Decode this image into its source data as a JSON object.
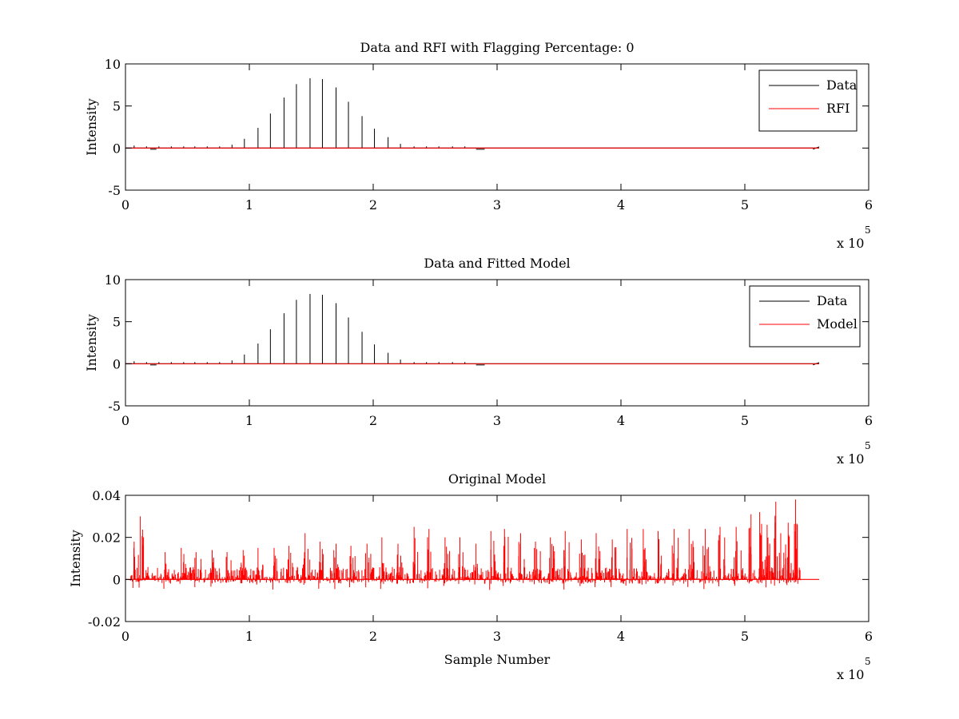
{
  "chart_data": [
    {
      "type": "line",
      "title": "Data and RFI with Flagging Percentage: 0",
      "xlabel": "",
      "ylabel": "Intensity",
      "xlim": [
        0,
        6
      ],
      "ylim": [
        -5,
        10
      ],
      "x_ticks": [
        "0",
        "1",
        "2",
        "3",
        "4",
        "5",
        "6"
      ],
      "y_ticks": [
        "-5",
        "0",
        "5",
        "10"
      ],
      "x_multiplier": [
        "x 10",
        "5"
      ],
      "legend": {
        "position": "top-right",
        "entries": [
          "Data",
          "RFI"
        ]
      },
      "grid": false,
      "series": [
        {
          "name": "Data",
          "color": "#000000",
          "style": "spikes",
          "baseline": 0,
          "x": [
            0.07,
            0.17,
            0.27,
            0.37,
            0.47,
            0.56,
            0.66,
            0.76,
            0.86,
            0.96,
            1.07,
            1.17,
            1.28,
            1.38,
            1.49,
            1.59,
            1.7,
            1.8,
            1.91,
            2.01,
            2.12,
            2.22,
            2.33,
            2.43,
            2.53,
            2.64,
            2.74
          ],
          "values": [
            0.3,
            0.2,
            0.2,
            0.2,
            0.2,
            0.2,
            0.2,
            0.2,
            0.4,
            1.1,
            2.4,
            4.1,
            6.0,
            7.6,
            8.3,
            8.2,
            7.2,
            5.5,
            3.8,
            2.3,
            1.3,
            0.5,
            0.2,
            0.2,
            0.2,
            0.2,
            0.2
          ]
        },
        {
          "name": "RFI",
          "color": "#ff0000",
          "style": "spikes",
          "baseline": 0,
          "x": [],
          "values": []
        }
      ]
    },
    {
      "type": "line",
      "title": "Data and Fitted Model",
      "xlabel": "",
      "ylabel": "Intensity",
      "xlim": [
        0,
        6
      ],
      "ylim": [
        -5,
        10
      ],
      "x_ticks": [
        "0",
        "1",
        "2",
        "3",
        "4",
        "5",
        "6"
      ],
      "y_ticks": [
        "-5",
        "0",
        "5",
        "10"
      ],
      "x_multiplier": [
        "x 10",
        "5"
      ],
      "legend": {
        "position": "top-right",
        "entries": [
          "Data",
          "Model"
        ]
      },
      "grid": false,
      "series": [
        {
          "name": "Data",
          "color": "#000000",
          "style": "spikes",
          "baseline": 0,
          "x": [
            0.07,
            0.17,
            0.27,
            0.37,
            0.47,
            0.56,
            0.66,
            0.76,
            0.86,
            0.96,
            1.07,
            1.17,
            1.28,
            1.38,
            1.49,
            1.59,
            1.7,
            1.8,
            1.91,
            2.01,
            2.12,
            2.22,
            2.33,
            2.43,
            2.53,
            2.64,
            2.74
          ],
          "values": [
            0.3,
            0.2,
            0.2,
            0.2,
            0.2,
            0.2,
            0.2,
            0.2,
            0.4,
            1.1,
            2.4,
            4.1,
            6.0,
            7.6,
            8.3,
            8.2,
            7.2,
            5.5,
            3.8,
            2.3,
            1.3,
            0.5,
            0.2,
            0.2,
            0.2,
            0.2,
            0.2
          ]
        },
        {
          "name": "Model",
          "color": "#ff0000",
          "style": "line",
          "x": [
            0,
            5.6
          ],
          "values": [
            0,
            0
          ]
        }
      ]
    },
    {
      "type": "line",
      "title": "Original Model",
      "xlabel": "Sample Number",
      "ylabel": "Intensity",
      "xlim": [
        0,
        6
      ],
      "ylim": [
        -0.02,
        0.04
      ],
      "x_ticks": [
        "0",
        "1",
        "2",
        "3",
        "4",
        "5",
        "6"
      ],
      "y_ticks": [
        "-0.02",
        "0",
        "0.02",
        "0.04"
      ],
      "x_multiplier": [
        "x 10",
        "5"
      ],
      "legend": null,
      "grid": false,
      "series": [
        {
          "name": "",
          "color": "#ff0000",
          "style": "spikes",
          "baseline": 0,
          "x": [
            0.07,
            0.12,
            0.32,
            0.45,
            0.57,
            0.7,
            0.82,
            0.95,
            1.07,
            1.2,
            1.32,
            1.45,
            1.57,
            1.7,
            1.82,
            1.95,
            2.07,
            2.2,
            2.33,
            2.45,
            2.58,
            2.7,
            2.83,
            2.95,
            3.06,
            3.19,
            3.31,
            3.43,
            3.55,
            3.68,
            3.8,
            3.93,
            4.05,
            4.18,
            4.3,
            4.43,
            4.55,
            4.68,
            4.8,
            4.93,
            5.05,
            5.12,
            5.18,
            5.25,
            5.29,
            5.35,
            5.41
          ],
          "values": [
            0.018,
            0.03,
            0.013,
            0.015,
            0.013,
            0.014,
            0.013,
            0.014,
            0.015,
            0.015,
            0.016,
            0.022,
            0.018,
            0.017,
            0.016,
            0.017,
            0.02,
            0.017,
            0.025,
            0.024,
            0.02,
            0.02,
            0.017,
            0.023,
            0.024,
            0.022,
            0.018,
            0.02,
            0.023,
            0.019,
            0.022,
            0.019,
            0.024,
            0.024,
            0.023,
            0.024,
            0.024,
            0.024,
            0.025,
            0.025,
            0.031,
            0.032,
            0.026,
            0.037,
            0.022,
            0.027,
            0.038
          ],
          "noise_amplitude": 0.006
        }
      ]
    }
  ]
}
